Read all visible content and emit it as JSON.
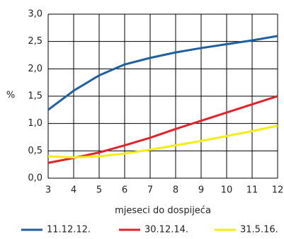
{
  "chart_data": {
    "type": "line",
    "x_label": "mjeseci do dospijeća",
    "y_label": "%",
    "x": [
      3,
      4,
      5,
      6,
      7,
      8,
      9,
      10,
      11,
      12
    ],
    "series": [
      {
        "name": "11.12.12.",
        "color": "#1f5fa0",
        "values": [
          1.25,
          1.6,
          1.88,
          2.08,
          2.2,
          2.3,
          2.38,
          2.45,
          2.52,
          2.6
        ]
      },
      {
        "name": "30.12.14.",
        "color": "#e0232b",
        "values": [
          0.28,
          0.37,
          0.47,
          0.6,
          0.74,
          0.9,
          1.05,
          1.2,
          1.35,
          1.5
        ]
      },
      {
        "name": "31.5.16.",
        "color": "#f5ec16",
        "values": [
          0.4,
          0.38,
          0.4,
          0.45,
          0.52,
          0.6,
          0.68,
          0.77,
          0.86,
          0.96
        ]
      }
    ],
    "xlim": [
      3,
      12
    ],
    "xticks": [
      3,
      4,
      5,
      6,
      7,
      8,
      9,
      10,
      11,
      12
    ],
    "ylim": [
      0,
      3
    ],
    "yticks": [
      {
        "value": 0,
        "label": "0,0"
      },
      {
        "value": 0.5,
        "label": "0,5"
      },
      {
        "value": 1,
        "label": "1,0"
      },
      {
        "value": 1.5,
        "label": "1,5"
      },
      {
        "value": 2,
        "label": "2,0"
      },
      {
        "value": 2.5,
        "label": "2,5"
      },
      {
        "value": 3,
        "label": "3,0"
      }
    ],
    "grid": true,
    "legend": "bottom"
  }
}
